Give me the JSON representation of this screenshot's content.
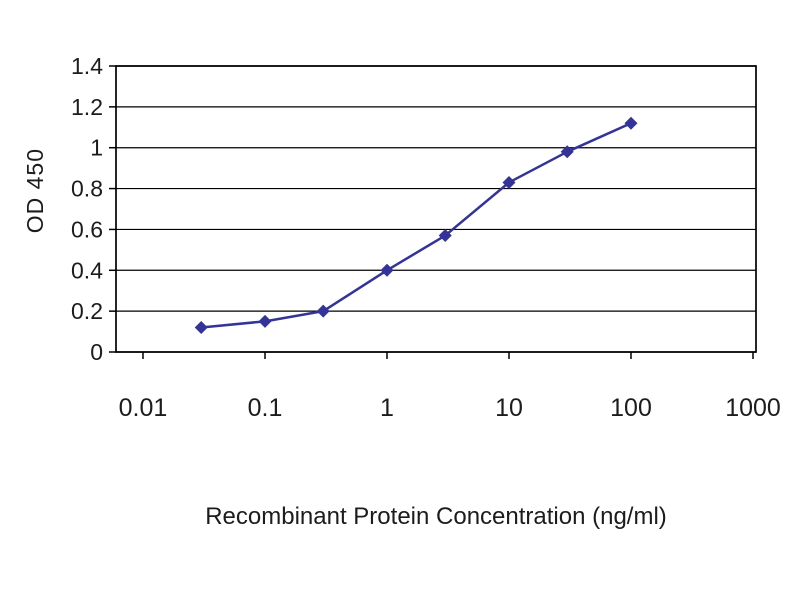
{
  "figure": {
    "background_color": "#ffffff",
    "text_color": "#1c1c1c"
  },
  "chart_data": {
    "type": "line",
    "x_scale": "log",
    "x": [
      0.03,
      0.1,
      0.3,
      1,
      3,
      10,
      30,
      100
    ],
    "y": [
      0.12,
      0.15,
      0.2,
      0.4,
      0.57,
      0.83,
      0.98,
      1.12
    ],
    "xlabel": "Recombinant Protein Concentration (ng/ml)",
    "ylabel": "OD 450",
    "xlim": [
      0.01,
      1000
    ],
    "ylim": [
      0,
      1.4
    ],
    "x_ticks": [
      0.01,
      0.1,
      1,
      10,
      100,
      1000
    ],
    "x_tick_labels": [
      "0.01",
      "0.1",
      "1",
      "10",
      "100",
      "1000"
    ],
    "y_ticks": [
      0,
      0.2,
      0.4,
      0.6,
      0.8,
      1,
      1.2,
      1.4
    ],
    "y_tick_labels": [
      "0",
      "0.2",
      "0.4",
      "0.6",
      "0.8",
      "1",
      "1.2",
      "1.4"
    ],
    "grid": "horizontal",
    "legend": "none",
    "line_color": "#333399",
    "marker": "diamond",
    "axis_color": "#000000",
    "text_color": "#1c1c1c"
  }
}
